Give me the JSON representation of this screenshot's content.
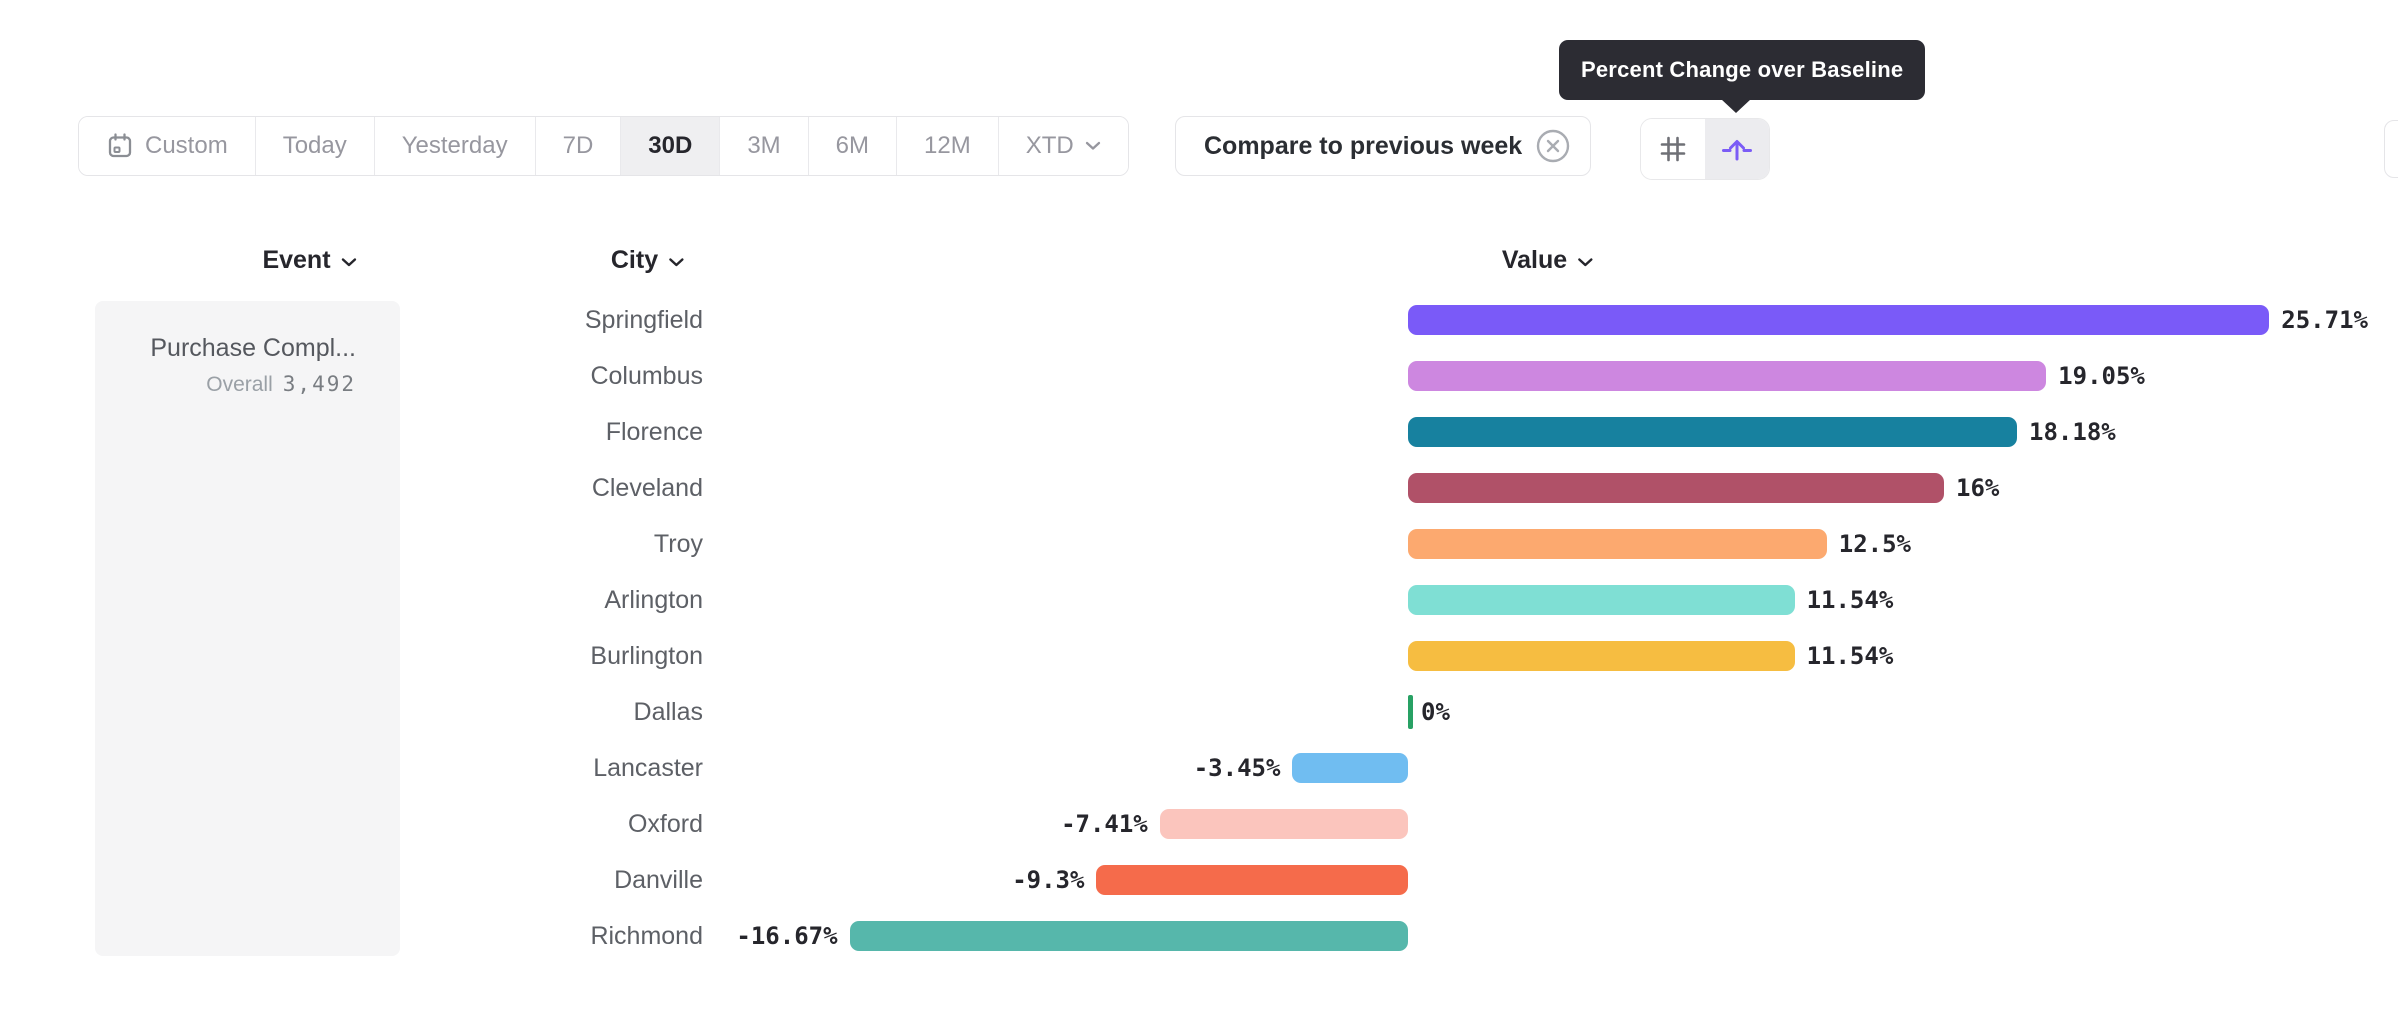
{
  "tooltip": {
    "text": "Percent Change over Baseline"
  },
  "toolbar": {
    "date_ranges": [
      "Custom",
      "Today",
      "Yesterday",
      "7D",
      "30D",
      "3M",
      "6M",
      "12M",
      "XTD"
    ],
    "selected_range": "30D",
    "compare_button": "Compare to previous week"
  },
  "table": {
    "headers": [
      {
        "label": "Event"
      },
      {
        "label": "City"
      },
      {
        "label": "Value"
      }
    ]
  },
  "event_card": {
    "title": "Purchase Compl...",
    "metric_label": "Overall",
    "metric_value": "3,492"
  },
  "colors": {
    "accent_purple": "#7b5cf6",
    "tooltip_bg": "#2c2c33",
    "selected_bg": "#efeff1",
    "border": "#e5e5e8",
    "muted_text": "#97979f"
  },
  "chart_data": {
    "type": "bar",
    "orientation": "horizontal",
    "title": "",
    "xlabel": "Value",
    "unit": "%",
    "baseline": 0,
    "xlim": [
      -16.67,
      25.71
    ],
    "grid": false,
    "categories": [
      "Springfield",
      "Columbus",
      "Florence",
      "Cleveland",
      "Troy",
      "Arlington",
      "Burlington",
      "Dallas",
      "Lancaster",
      "Oxford",
      "Danville",
      "Richmond"
    ],
    "values": [
      25.71,
      19.05,
      18.18,
      16,
      12.5,
      11.54,
      11.54,
      0,
      -3.45,
      -7.41,
      -9.3,
      -16.67
    ],
    "labels": [
      "25.71%",
      "19.05%",
      "18.18%",
      "16%",
      "12.5%",
      "11.54%",
      "11.54%",
      "0%",
      "-3.45%",
      "-7.41%",
      "-9.3%",
      "-16.67%"
    ],
    "colors": [
      "#7a5af8",
      "#cd87e0",
      "#17819f",
      "#b05168",
      "#fca96f",
      "#7fdfd4",
      "#f6bd41",
      "#28a164",
      "#70bdf1",
      "#fbc5bd",
      "#f56b4b",
      "#56b7ab"
    ],
    "zero_tick_color": "#28a164"
  }
}
